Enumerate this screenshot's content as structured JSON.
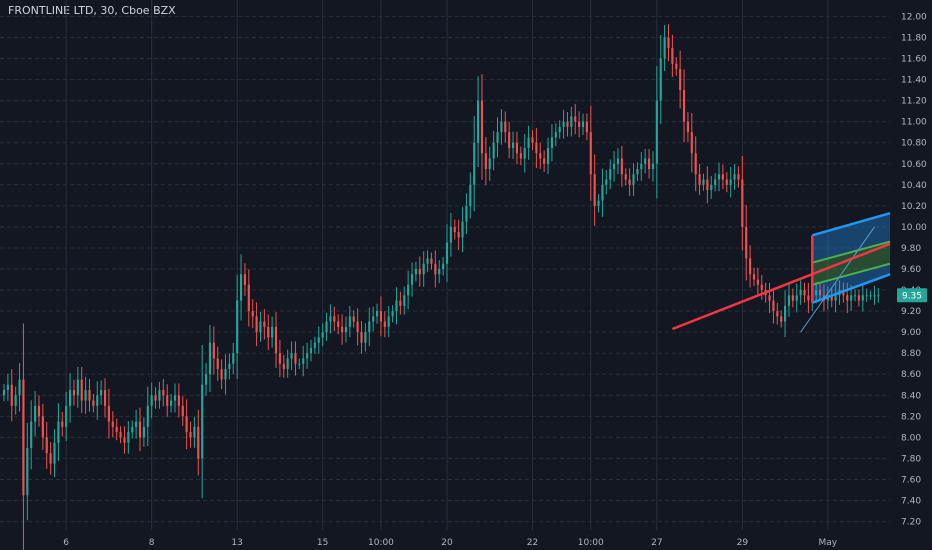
{
  "symbol": {
    "title": "FRONTLINE LTD, 30, Cboe BZX"
  },
  "colors": {
    "background": "#131722",
    "grid": "#2a2e39",
    "up": "#26a69a",
    "down": "#ef5350",
    "axis_text": "#b2b5be",
    "last_price_bg": "#26a69a",
    "trend_line": "#f23645",
    "channel_outer": "#2196f3",
    "channel_mid": "#4caf50",
    "channel_fill_outer": "#2196f3",
    "channel_fill_inner": "#4caf50",
    "trend_thin": "#5b9bd5"
  },
  "chart_data": {
    "type": "candlestick",
    "title": "FRONTLINE LTD, 30, Cboe BZX",
    "ylim": [
      7.12,
      12.08
    ],
    "y_ticks": [
      "7.20",
      "7.40",
      "7.60",
      "7.80",
      "8.00",
      "8.20",
      "8.40",
      "8.60",
      "8.80",
      "9.00",
      "9.20",
      "9.40",
      "9.60",
      "9.80",
      "10.00",
      "10.20",
      "10.40",
      "10.60",
      "10.80",
      "11.00",
      "11.20",
      "11.40",
      "11.60",
      "11.80",
      "12.00"
    ],
    "x_ticks": [
      {
        "label": "6",
        "index": 16
      },
      {
        "label": "8",
        "index": 38
      },
      {
        "label": "13",
        "index": 60
      },
      {
        "label": "15",
        "index": 82
      },
      {
        "label": "10:00",
        "index": 97
      },
      {
        "label": "20",
        "index": 114
      },
      {
        "label": "22",
        "index": 136
      },
      {
        "label": "10:00",
        "index": 151
      },
      {
        "label": "27",
        "index": 168
      },
      {
        "label": "29",
        "index": 190
      },
      {
        "label": "May",
        "index": 212
      }
    ],
    "x_index_range": [
      0,
      228
    ],
    "last_price": "9.35",
    "closes": [
      8.45,
      8.5,
      8.3,
      8.4,
      8.55,
      7.45,
      7.9,
      8.15,
      8.3,
      8.2,
      8.0,
      7.85,
      7.75,
      7.95,
      8.15,
      8.1,
      8.3,
      8.45,
      8.4,
      8.55,
      8.35,
      8.45,
      8.35,
      8.3,
      8.4,
      8.45,
      8.3,
      8.15,
      8.1,
      8.05,
      8.0,
      7.95,
      8.05,
      8.1,
      8.15,
      8.0,
      8.1,
      8.3,
      8.4,
      8.35,
      8.45,
      8.4,
      8.3,
      8.35,
      8.4,
      8.3,
      8.2,
      8.05,
      8.0,
      8.1,
      7.8,
      8.5,
      8.6,
      8.9,
      8.75,
      8.65,
      8.55,
      8.65,
      8.7,
      8.8,
      9.3,
      9.55,
      9.45,
      9.2,
      9.15,
      9.0,
      9.1,
      9.05,
      8.95,
      9.05,
      8.8,
      8.7,
      8.65,
      8.75,
      8.8,
      8.7,
      8.7,
      8.75,
      8.8,
      8.85,
      8.9,
      8.95,
      9.0,
      9.1,
      9.15,
      9.1,
      9.05,
      9.0,
      9.05,
      9.15,
      9.1,
      9.0,
      8.9,
      9.0,
      9.1,
      9.15,
      9.2,
      9.1,
      9.05,
      9.15,
      9.2,
      9.3,
      9.25,
      9.35,
      9.45,
      9.55,
      9.6,
      9.55,
      9.65,
      9.7,
      9.65,
      9.55,
      9.6,
      9.65,
      9.85,
      10.0,
      9.95,
      9.9,
      10.05,
      10.2,
      10.4,
      10.8,
      11.2,
      10.7,
      10.55,
      10.65,
      10.8,
      10.9,
      11.0,
      10.9,
      10.75,
      10.8,
      10.7,
      10.65,
      10.75,
      10.85,
      10.8,
      10.7,
      10.65,
      10.6,
      10.75,
      10.85,
      10.9,
      10.95,
      11.0,
      10.95,
      11.05,
      11.0,
      10.95,
      11.0,
      10.9,
      10.5,
      10.2,
      10.25,
      10.4,
      10.45,
      10.55,
      10.6,
      10.65,
      10.5,
      10.45,
      10.4,
      10.5,
      10.55,
      10.6,
      10.65,
      10.55,
      10.6,
      11.2,
      11.6,
      11.8,
      11.7,
      11.55,
      11.5,
      11.3,
      11.0,
      10.9,
      10.7,
      10.5,
      10.4,
      10.45,
      10.35,
      10.4,
      10.45,
      10.5,
      10.45,
      10.4,
      10.45,
      10.5,
      10.45,
      10.0,
      9.7,
      9.55,
      9.5,
      9.45,
      9.4,
      9.35,
      9.3,
      9.2,
      9.15,
      9.1,
      9.25,
      9.35,
      9.3,
      9.35,
      9.4,
      9.35,
      9.3,
      9.35,
      9.4,
      9.35,
      9.3,
      9.35,
      9.3,
      9.35,
      9.4,
      9.35,
      9.3,
      9.35,
      9.35,
      9.3,
      9.35,
      9.35,
      9.35,
      9.35,
      9.35
    ],
    "drawings": {
      "trend_line": {
        "from": {
          "index": 172,
          "price": 9.03
        },
        "to": {
          "index": 228,
          "price": 9.84
        }
      },
      "pitchfork_channel": {
        "upper": {
          "from": {
            "index": 208,
            "price": 9.92
          },
          "to": {
            "index": 228,
            "price": 10.13
          }
        },
        "mid_upper": {
          "from": {
            "index": 208,
            "price": 9.66
          },
          "to": {
            "index": 228,
            "price": 9.86
          }
        },
        "mid_lower": {
          "from": {
            "index": 208,
            "price": 9.45
          },
          "to": {
            "index": 228,
            "price": 9.65
          }
        },
        "lower": {
          "from": {
            "index": 208,
            "price": 9.28
          },
          "to": {
            "index": 228,
            "price": 9.55
          }
        }
      },
      "thin_trend": {
        "from": {
          "index": 205,
          "price": 9.0
        },
        "to": {
          "index": 224,
          "price": 10.0
        }
      }
    }
  }
}
